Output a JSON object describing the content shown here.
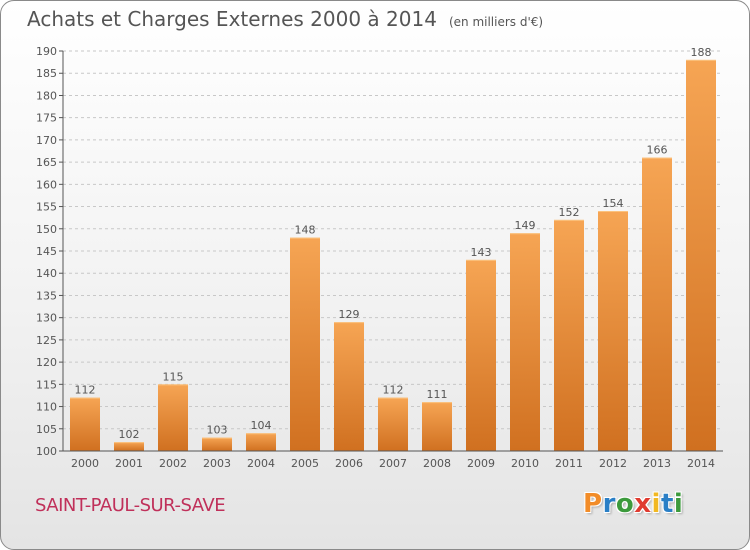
{
  "title": "Achats et Charges Externes 2000 à 2014",
  "unit": "(en milliers d'€)",
  "commune": "SAINT-PAUL-SUR-SAVE",
  "logo": {
    "letters": [
      "P",
      "r",
      "o",
      "x",
      "i",
      "t",
      "i"
    ],
    "colors": [
      "#f28c28",
      "#2a7fc6",
      "#3c9a3c",
      "#e03a2f",
      "#f2b822",
      "#2a7fc6",
      "#3c9a3c"
    ]
  },
  "colors": {
    "bar_light": "#f6a554",
    "bar_dark": "#d07020",
    "bar_top": "#fbc27e",
    "axis": "#555555",
    "grid": "#c8c8c8",
    "commune_text": "#c0305a"
  },
  "chart_data": {
    "type": "bar",
    "categories": [
      "2000",
      "2001",
      "2002",
      "2003",
      "2004",
      "2005",
      "2006",
      "2007",
      "2008",
      "2009",
      "2010",
      "2011",
      "2012",
      "2013",
      "2014"
    ],
    "values": [
      112,
      102,
      115,
      103,
      104,
      148,
      129,
      112,
      111,
      143,
      149,
      152,
      154,
      166,
      188
    ],
    "value_labels": [
      "112",
      "102",
      "115",
      "103",
      "104",
      "148",
      "129",
      "112",
      "111",
      "143",
      "149",
      "152",
      "154",
      "166",
      "188"
    ],
    "ylim": [
      100,
      190
    ],
    "yticks": [
      "100",
      "105",
      "110",
      "115",
      "120",
      "125",
      "130",
      "135",
      "140",
      "145",
      "150",
      "155",
      "160",
      "165",
      "170",
      "175",
      "180",
      "185",
      "190"
    ],
    "grid": true,
    "xlabel": "",
    "ylabel": ""
  }
}
